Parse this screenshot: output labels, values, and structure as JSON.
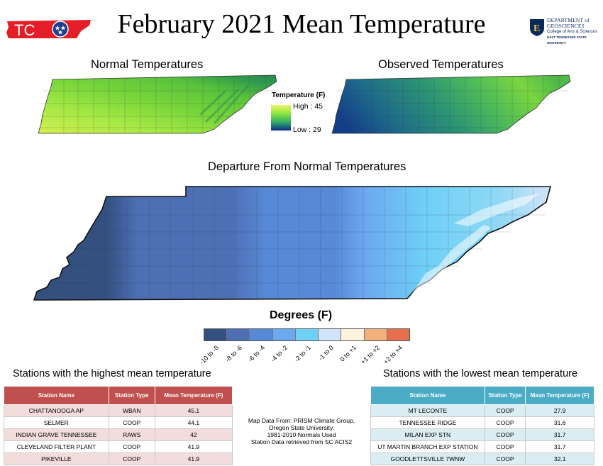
{
  "title": "February 2021 Mean Temperature",
  "logo": {
    "text": "TCO",
    "colors": {
      "red": "#e31e26",
      "blue": "#1e3f8f"
    }
  },
  "institution": {
    "line1": "DEPARTMENT of",
    "line2": "GEOSCIENCES",
    "line3": "College of Arts & Sciences",
    "line4": "EAST TENNESSEE STATE UNIVERSITY"
  },
  "normal_map": {
    "title": "Normal Temperatures"
  },
  "observed_map": {
    "title": "Observed Temperatures"
  },
  "temperature_legend": {
    "title": "Temperature (F)",
    "high": "High : 45",
    "low": "Low : 29"
  },
  "departure_map": {
    "title": "Departure From Normal Temperatures"
  },
  "departure_legend": {
    "title": "Degrees (F)",
    "classes": [
      {
        "label": "-10 to -8",
        "color": "#34507f"
      },
      {
        "label": "-8 to -6",
        "color": "#4d6fb4"
      },
      {
        "label": "-6 to -4",
        "color": "#5789d6"
      },
      {
        "label": "-4 to -2",
        "color": "#6ca8f0"
      },
      {
        "label": "-2 to -1",
        "color": "#6fd0f6"
      },
      {
        "label": "-1 to 0",
        "color": "#d2e4f9"
      },
      {
        "label": "0 to +1",
        "color": "#fdf2dc"
      },
      {
        "label": "+1 to +2",
        "color": "#f2b07a"
      },
      {
        "label": "+2 to +4",
        "color": "#e6704d"
      }
    ]
  },
  "high_stations": {
    "title": "Stations with the highest mean temperature",
    "headers": [
      "Station Name",
      "Station Type",
      "Mean Temperature (F)"
    ],
    "rows": [
      [
        "CHATTANOOGA AP",
        "WBAN",
        "45.1"
      ],
      [
        "SELMER",
        "COOP",
        "44.1"
      ],
      [
        "INDIAN GRAVE TENNESSEE",
        "RAWS",
        "42"
      ],
      [
        "CLEVELAND FILTER PLANT",
        "COOP",
        "41.9"
      ],
      [
        "PIKEVILLE",
        "COOP",
        "41.9"
      ]
    ]
  },
  "low_stations": {
    "title": "Stations with the lowest mean temperature",
    "headers": [
      "Station Name",
      "Station Type",
      "Mean Temperature (F)"
    ],
    "rows": [
      [
        "MT LECONTE",
        "COOP",
        "27.9"
      ],
      [
        "TENNESSEE RIDGE",
        "COOP",
        "31.6"
      ],
      [
        "MILAN EXP STN",
        "COOP",
        "31.7"
      ],
      [
        "UT MARTIN BRANCH EXP STATION",
        "COOP",
        "31.7"
      ],
      [
        "GOODLETTSVILLE 7WNW",
        "COOP",
        "32.1"
      ]
    ]
  },
  "credits": [
    "Map Data From: PRISM Climate Group,",
    "Oregon State University.",
    "1981-2010 Normals Used",
    "Station Data retrieved from SC ACIS2"
  ]
}
